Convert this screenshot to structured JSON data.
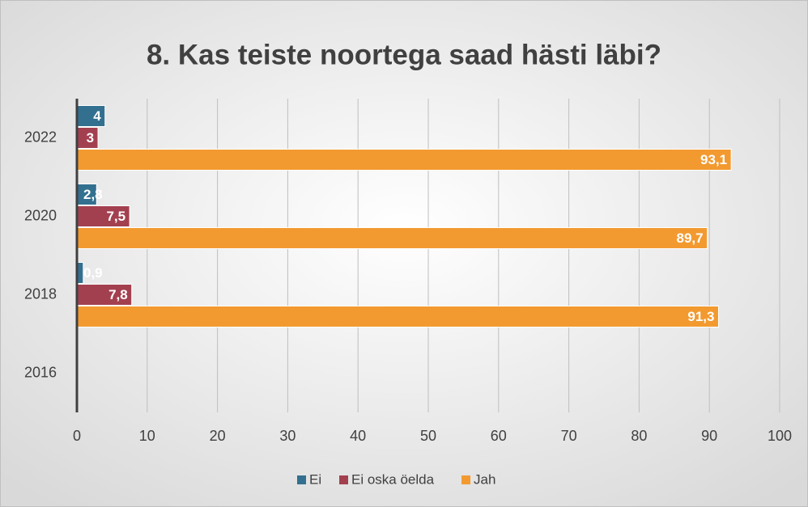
{
  "chart_data": {
    "type": "hbar",
    "title": "8. Kas teiste noortega saad hästi läbi?",
    "categories": [
      "2022",
      "2020",
      "2018",
      "2016"
    ],
    "series": [
      {
        "name": "Ei",
        "color": "#33708f",
        "values": [
          4,
          2.8,
          0.9,
          null
        ],
        "value_labels": [
          "4",
          "2,8",
          "0,9",
          null
        ]
      },
      {
        "name": "Ei oska öelda",
        "color": "#a3404f",
        "values": [
          3,
          7.5,
          7.8,
          null
        ],
        "value_labels": [
          "3",
          "7,5",
          "7,8",
          null
        ]
      },
      {
        "name": "Jah",
        "color": "#f29a30",
        "values": [
          93.1,
          89.7,
          91.3,
          null
        ],
        "value_labels": [
          "93,1",
          "89,7",
          "91,3",
          null
        ]
      }
    ],
    "xlim": [
      0,
      100
    ],
    "xticks": [
      0,
      10,
      20,
      30,
      40,
      50,
      60,
      70,
      80,
      90,
      100
    ],
    "grid": true,
    "legend": "bottom"
  }
}
